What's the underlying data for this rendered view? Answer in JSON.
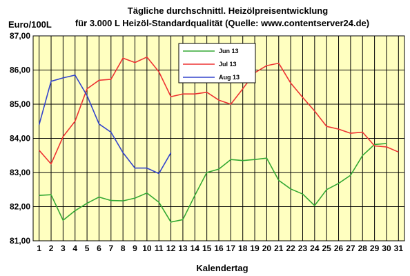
{
  "chart_data": {
    "type": "line",
    "title": "Tägliche durchschnittl. Heizölpreisentwicklung",
    "subtitle": "für 3.000 L Heizöl-Standardqualität (Quelle: www.contentserver24.de)",
    "ylabel": "Euro/100L",
    "xlabel": "Kalendertag",
    "ylim": [
      81,
      87
    ],
    "yticks": [
      "81,00",
      "82,00",
      "83,00",
      "84,00",
      "85,00",
      "86,00",
      "87,00"
    ],
    "ytick_values": [
      81,
      82,
      83,
      84,
      85,
      86,
      87
    ],
    "x": [
      "1",
      "2",
      "3",
      "4",
      "5",
      "6",
      "7",
      "8",
      "9",
      "10",
      "11",
      "12",
      "13",
      "14",
      "15",
      "16",
      "17",
      "18",
      "19",
      "20",
      "21",
      "22",
      "23",
      "24",
      "25",
      "26",
      "27",
      "28",
      "29",
      "30",
      "31"
    ],
    "grid": true,
    "legend_position": "top-center",
    "plot_background": "#ffffc0",
    "series": [
      {
        "name": "Jun 13",
        "color": "#33a833",
        "values": [
          82.33,
          82.35,
          81.6,
          81.88,
          82.1,
          82.28,
          82.18,
          82.17,
          82.25,
          82.4,
          82.13,
          81.55,
          81.62,
          82.33,
          83.0,
          83.1,
          83.38,
          83.35,
          83.38,
          83.42,
          82.77,
          82.52,
          82.37,
          82.03,
          82.5,
          82.68,
          82.92,
          83.5,
          83.82,
          83.85,
          null
        ]
      },
      {
        "name": "Jul 13",
        "color": "#ee3333",
        "values": [
          83.65,
          83.25,
          84.05,
          84.5,
          85.45,
          85.7,
          85.73,
          86.35,
          86.22,
          86.38,
          85.95,
          85.22,
          85.3,
          85.3,
          85.35,
          85.12,
          85.0,
          85.45,
          85.92,
          86.13,
          86.2,
          85.62,
          85.2,
          84.8,
          84.35,
          84.27,
          84.15,
          84.18,
          83.78,
          83.75,
          83.6
        ]
      },
      {
        "name": "Aug 13",
        "color": "#3344cc",
        "values": [
          84.4,
          85.67,
          85.77,
          85.85,
          85.25,
          84.42,
          84.18,
          83.58,
          83.13,
          83.13,
          82.97,
          83.58,
          null,
          null,
          null,
          null,
          null,
          null,
          null,
          null,
          null,
          null,
          null,
          null,
          null,
          null,
          null,
          null,
          null,
          null,
          null
        ]
      }
    ]
  }
}
